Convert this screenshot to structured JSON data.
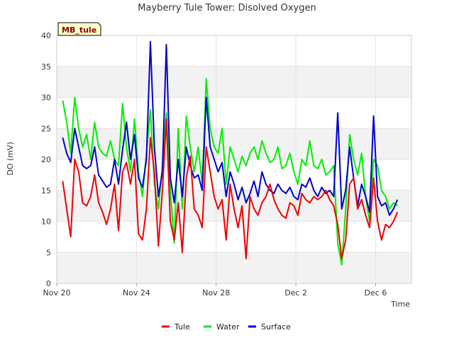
{
  "chart_data": {
    "type": "line",
    "title": "Mayberry Tule Tower: Disolved Oxygen",
    "tag": "MB_tule",
    "xlabel": "Time",
    "ylabel": "DO (mV)",
    "ylim": [
      0,
      40
    ],
    "yticks": [
      "0",
      "5",
      "10",
      "15",
      "20",
      "25",
      "30",
      "35",
      "40"
    ],
    "xlim": [
      0,
      17.8
    ],
    "xticks": [
      {
        "label": "Nov 20",
        "day": 0
      },
      {
        "label": "Nov 24",
        "day": 4
      },
      {
        "label": "Nov 28",
        "day": 8
      },
      {
        "label": "Dec 2",
        "day": 12
      },
      {
        "label": "Dec 6",
        "day": 16
      }
    ],
    "grid": true,
    "legend_position": "bottom",
    "colors": {
      "Tule": "#ee0000",
      "Water": "#00ee00",
      "Surface": "#0000cc"
    },
    "series": [
      {
        "name": "Tule",
        "x": [
          0.3,
          0.5,
          0.7,
          0.9,
          1.1,
          1.3,
          1.5,
          1.7,
          1.9,
          2.1,
          2.3,
          2.5,
          2.7,
          2.9,
          3.1,
          3.3,
          3.5,
          3.7,
          3.9,
          4.1,
          4.3,
          4.5,
          4.7,
          4.9,
          5.1,
          5.3,
          5.5,
          5.7,
          5.9,
          6.1,
          6.3,
          6.5,
          6.7,
          6.9,
          7.1,
          7.3,
          7.5,
          7.7,
          7.9,
          8.1,
          8.3,
          8.5,
          8.7,
          8.9,
          9.1,
          9.3,
          9.5,
          9.7,
          9.9,
          10.1,
          10.3,
          10.5,
          10.7,
          10.9,
          11.1,
          11.3,
          11.5,
          11.7,
          11.9,
          12.1,
          12.3,
          12.5,
          12.7,
          12.9,
          13.1,
          13.3,
          13.5,
          13.7,
          13.9,
          14.1,
          14.3,
          14.5,
          14.7,
          14.9,
          15.1,
          15.3,
          15.5,
          15.7,
          15.9,
          16.1,
          16.3,
          16.5,
          16.7,
          16.9,
          17.1
        ],
        "values": [
          16.5,
          12.0,
          7.5,
          20.0,
          18.0,
          13.0,
          12.5,
          14.0,
          17.5,
          13.0,
          11.5,
          9.5,
          12.0,
          16.0,
          8.5,
          18.0,
          19.5,
          16.0,
          20.0,
          8.0,
          7.0,
          12.0,
          23.5,
          18.0,
          6.0,
          15.0,
          26.5,
          10.0,
          7.0,
          13.0,
          5.0,
          17.0,
          20.5,
          12.0,
          11.0,
          9.0,
          22.0,
          18.0,
          14.0,
          12.0,
          13.5,
          7.0,
          16.0,
          12.0,
          9.0,
          12.5,
          4.0,
          14.0,
          12.0,
          11.0,
          13.0,
          14.0,
          16.0,
          13.5,
          12.0,
          11.0,
          10.5,
          13.0,
          12.5,
          11.0,
          14.5,
          13.5,
          13.0,
          14.0,
          13.5,
          14.0,
          15.0,
          13.5,
          12.5,
          9.5,
          4.0,
          7.0,
          16.0,
          17.0,
          12.0,
          13.5,
          11.0,
          9.0,
          17.0,
          10.0,
          7.0,
          9.5,
          9.0,
          10.0,
          11.5
        ]
      },
      {
        "name": "Water",
        "x": [
          0.3,
          0.5,
          0.7,
          0.9,
          1.1,
          1.3,
          1.5,
          1.7,
          1.9,
          2.1,
          2.3,
          2.5,
          2.7,
          2.9,
          3.1,
          3.3,
          3.5,
          3.7,
          3.9,
          4.1,
          4.3,
          4.5,
          4.7,
          4.9,
          5.1,
          5.3,
          5.5,
          5.7,
          5.9,
          6.1,
          6.3,
          6.5,
          6.7,
          6.9,
          7.1,
          7.3,
          7.5,
          7.7,
          7.9,
          8.1,
          8.3,
          8.5,
          8.7,
          8.9,
          9.1,
          9.3,
          9.5,
          9.7,
          9.9,
          10.1,
          10.3,
          10.5,
          10.7,
          10.9,
          11.1,
          11.3,
          11.5,
          11.7,
          11.9,
          12.1,
          12.3,
          12.5,
          12.7,
          12.9,
          13.1,
          13.3,
          13.5,
          13.7,
          13.9,
          14.1,
          14.3,
          14.5,
          14.7,
          14.9,
          15.1,
          15.3,
          15.5,
          15.7,
          15.9,
          16.1,
          16.3,
          16.5,
          16.7,
          16.9,
          17.1
        ],
        "values": [
          29.5,
          26.0,
          21.0,
          30.0,
          25.0,
          22.0,
          24.0,
          20.0,
          26.0,
          22.0,
          21.0,
          20.5,
          23.0,
          20.0,
          19.0,
          29.0,
          22.0,
          18.0,
          26.5,
          18.0,
          14.0,
          21.0,
          28.0,
          16.0,
          12.0,
          19.0,
          27.5,
          15.0,
          6.5,
          25.0,
          12.0,
          27.0,
          22.0,
          18.0,
          22.0,
          16.0,
          33.0,
          25.0,
          22.0,
          21.0,
          25.0,
          16.0,
          22.0,
          20.0,
          18.0,
          20.5,
          19.0,
          21.0,
          22.0,
          20.0,
          23.0,
          21.0,
          19.5,
          20.0,
          22.0,
          18.5,
          19.0,
          21.0,
          18.0,
          16.0,
          20.0,
          19.0,
          23.0,
          19.0,
          18.5,
          20.0,
          17.5,
          18.0,
          19.0,
          6.5,
          3.0,
          12.0,
          24.0,
          20.0,
          17.5,
          21.0,
          14.0,
          10.0,
          20.0,
          19.0,
          15.0,
          14.0,
          12.0,
          13.0,
          12.5
        ]
      },
      {
        "name": "Surface",
        "x": [
          0.3,
          0.5,
          0.7,
          0.9,
          1.1,
          1.3,
          1.5,
          1.7,
          1.9,
          2.1,
          2.3,
          2.5,
          2.7,
          2.9,
          3.1,
          3.3,
          3.5,
          3.7,
          3.9,
          4.1,
          4.3,
          4.5,
          4.7,
          4.9,
          5.1,
          5.3,
          5.5,
          5.7,
          5.9,
          6.1,
          6.3,
          6.5,
          6.7,
          6.9,
          7.1,
          7.3,
          7.5,
          7.7,
          7.9,
          8.1,
          8.3,
          8.5,
          8.7,
          8.9,
          9.1,
          9.3,
          9.5,
          9.7,
          9.9,
          10.1,
          10.3,
          10.5,
          10.7,
          10.9,
          11.1,
          11.3,
          11.5,
          11.7,
          11.9,
          12.1,
          12.3,
          12.5,
          12.7,
          12.9,
          13.1,
          13.3,
          13.5,
          13.7,
          13.9,
          14.1,
          14.3,
          14.5,
          14.7,
          14.9,
          15.1,
          15.3,
          15.5,
          15.7,
          15.9,
          16.1,
          16.3,
          16.5,
          16.7,
          16.9,
          17.1
        ],
        "values": [
          23.5,
          21.0,
          19.5,
          25.0,
          22.0,
          19.0,
          18.5,
          19.0,
          22.0,
          17.5,
          16.5,
          15.5,
          16.0,
          20.0,
          16.0,
          21.5,
          26.0,
          20.0,
          24.0,
          17.0,
          15.5,
          20.0,
          39.0,
          22.0,
          14.0,
          18.0,
          38.5,
          17.0,
          13.0,
          20.0,
          14.0,
          22.0,
          19.0,
          17.0,
          17.5,
          15.0,
          30.0,
          22.0,
          20.0,
          18.0,
          19.5,
          14.0,
          18.0,
          16.0,
          13.5,
          15.5,
          13.0,
          14.5,
          16.5,
          14.0,
          18.0,
          16.0,
          15.0,
          14.5,
          16.0,
          15.0,
          14.5,
          15.5,
          14.0,
          13.5,
          16.0,
          15.5,
          17.0,
          15.0,
          14.0,
          15.5,
          14.5,
          15.0,
          14.0,
          27.5,
          12.0,
          15.0,
          22.0,
          17.0,
          12.5,
          16.0,
          14.0,
          11.5,
          27.0,
          14.0,
          12.5,
          13.0,
          11.0,
          12.0,
          13.5
        ]
      }
    ]
  }
}
